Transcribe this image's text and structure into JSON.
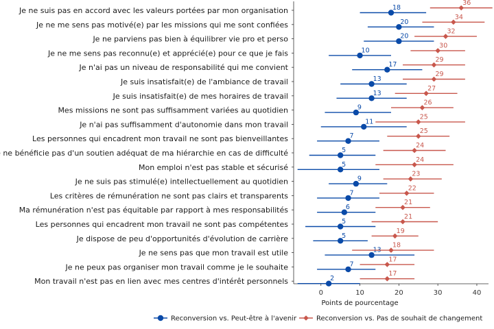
{
  "chart_data": {
    "type": "dot-plot",
    "title": "",
    "xlabel": "Points de pourcentage",
    "ylabel": "",
    "xlim": [
      -7,
      43
    ],
    "xticks": [
      0,
      10,
      20,
      30,
      40
    ],
    "grid": false,
    "legend_position": "bottom",
    "colors": {
      "blue": "#0a4aa8",
      "red": "#c8574c"
    },
    "categories": [
      "Je ne suis pas en accord avec les valeurs portées par mon organisation",
      "Je ne me sens pas motivé(e) par les missions qui me sont confiées",
      "Je ne parviens pas bien à équilibrer vie pro et perso",
      "Je ne me sens pas reconnu(e) et apprécié(e) pour ce que je fais",
      "Je n'ai pas un niveau de responsabilité qui me convient",
      "Je suis insatisfait(e) de l'ambiance de travail",
      "Je suis insatisfait(e) de mes horaires de travail",
      "Mes missions ne sont pas suffisamment variées au quotidien",
      "Je n'ai pas suffisamment d'autonomie dans mon travail",
      "Les personnes qui encadrent mon travail ne sont pas bienveillantes",
      "Je ne bénéficie pas d'un soutien adéquat de ma hiérarchie en cas de difficulté",
      "Mon emploi n'est pas stable et sécurisé",
      "Je ne suis pas stimulé(e) intellectuellement au quotidien",
      "Les critères de rémunération ne sont pas clairs et transparents",
      "Ma rémunération n'est pas équitable par rapport à mes responsabilités",
      "Les personnes qui encadrent mon travail ne sont pas compétentes",
      "Je dispose de peu d'opportunités d'évolution de carrière",
      "Je ne sens pas que mon travail est utile",
      "Je ne peux pas organiser mon travail comme je le souhaite",
      "Mon travail n'est pas en lien avec mes centres d'intérêt personnels"
    ],
    "series": [
      {
        "name": "Reconversion vs. Peut-être à l'avenir",
        "color": "#0a4aa8",
        "marker": "circle",
        "values": [
          18,
          20,
          20,
          10,
          17,
          13,
          13,
          9,
          11,
          7,
          5,
          5,
          9,
          7,
          6,
          5,
          5,
          13,
          7,
          2
        ],
        "ci_low": [
          10,
          12,
          11,
          2,
          8,
          5,
          4,
          1,
          0,
          -1,
          -3,
          -6,
          2,
          -1,
          -1,
          -4,
          -2,
          1,
          -1,
          -6
        ],
        "ci_high": [
          27,
          29,
          29,
          18,
          26,
          22,
          22,
          18,
          22,
          15,
          14,
          15,
          17,
          15,
          14,
          14,
          12,
          24,
          14,
          10
        ],
        "labels": [
          "18",
          "20",
          "20",
          "10",
          "17",
          "13",
          "13",
          "9",
          "11",
          "7",
          "5",
          "5",
          "9",
          "7",
          "6",
          "5",
          "5",
          "13",
          "7",
          "2"
        ]
      },
      {
        "name": "Reconversion vs. Pas de souhait de changement",
        "color": "#c8574c",
        "marker": "diamond",
        "values": [
          36,
          34,
          32,
          30,
          29,
          29,
          27,
          26,
          25,
          25,
          24,
          24,
          23,
          22,
          21,
          21,
          19,
          18,
          17,
          17
        ],
        "ci_low": [
          28,
          26,
          24,
          23,
          21,
          21,
          19,
          18,
          14,
          17,
          16,
          14,
          16,
          15,
          14,
          13,
          13,
          8,
          10,
          10
        ],
        "ci_high": [
          44,
          42,
          40,
          37,
          37,
          37,
          35,
          34,
          37,
          33,
          32,
          34,
          31,
          29,
          28,
          30,
          25,
          29,
          24,
          24
        ],
        "labels": [
          "36",
          "34",
          "32",
          "30",
          "29",
          "29",
          "27",
          "26",
          "25",
          "25",
          "24",
          "24",
          "23",
          "22",
          "21",
          "21",
          "19",
          "18",
          "17",
          "17"
        ]
      }
    ]
  }
}
